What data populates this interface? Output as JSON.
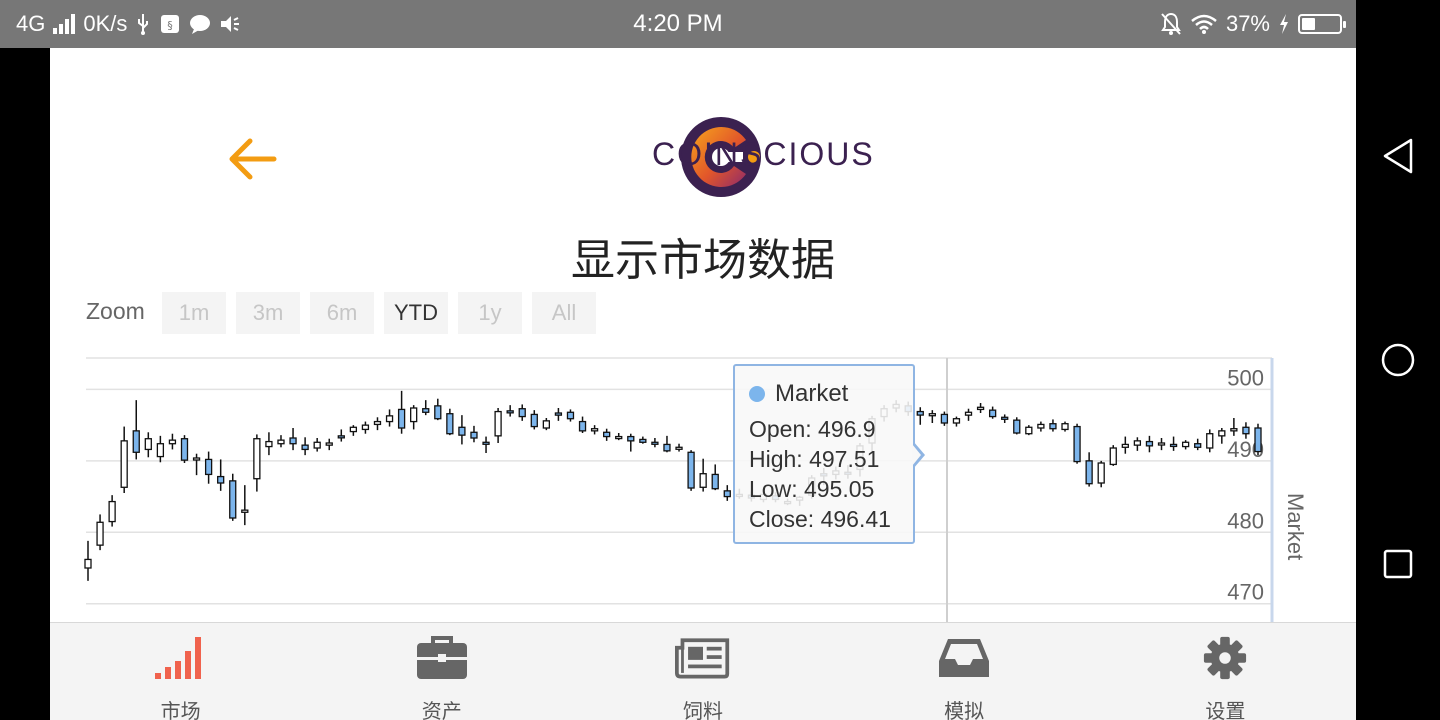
{
  "status_bar": {
    "network": "4G",
    "speed": "0K/s",
    "time": "4:20 PM",
    "battery_percent": "37%",
    "battery_level": 0.37
  },
  "app": {
    "logo_text": "COINSCIOUS",
    "page_title": "显示市场数据",
    "colors": {
      "accent": "#f39c12",
      "brand_purple": "#3b2150",
      "tab_active": "#f0624d",
      "tooltip_border": "#8fb5e3",
      "series_dot": "#7cb5ec"
    }
  },
  "zoom": {
    "label": "Zoom",
    "buttons": [
      "1m",
      "3m",
      "6m",
      "YTD",
      "1y",
      "All"
    ],
    "active": "YTD"
  },
  "chart_data": {
    "type": "candlestick",
    "series_name": "Market",
    "ylim": [
      468,
      508
    ],
    "yticks": [
      "500",
      "490",
      "480",
      "470"
    ],
    "tooltip": {
      "series": "Market",
      "open": "Open: 496.9",
      "high": "High: 497.51",
      "low": "Low: 495.05",
      "close": "Close: 496.41"
    },
    "candles": [
      [
        475,
        478.8,
        473.2,
        476.2
      ],
      [
        478.2,
        482.5,
        477.5,
        481.4
      ],
      [
        481.5,
        485.2,
        480.8,
        484.3
      ],
      [
        486.3,
        494.8,
        485.5,
        492.8
      ],
      [
        494.2,
        498.5,
        490.2,
        491.2
      ],
      [
        491.6,
        494,
        490.5,
        493.1
      ],
      [
        490.6,
        493.5,
        489.8,
        492.4
      ],
      [
        492.4,
        493.8,
        491.6,
        492.9
      ],
      [
        493.1,
        493.6,
        489.7,
        490.1
      ],
      [
        490.2,
        491,
        488,
        490.4
      ],
      [
        490.2,
        491.3,
        486.8,
        488.1
      ],
      [
        487.8,
        490.2,
        485.8,
        486.9
      ],
      [
        487.2,
        488.2,
        481.6,
        482
      ],
      [
        482.8,
        486.6,
        481,
        483.1
      ],
      [
        487.5,
        493.7,
        485.7,
        493.1
      ],
      [
        492,
        494,
        490.8,
        492.7
      ],
      [
        492.4,
        493.6,
        491.9,
        492.9
      ],
      [
        493.2,
        494.6,
        491.5,
        492.4
      ],
      [
        492.2,
        493.3,
        490.8,
        491.6
      ],
      [
        491.8,
        493.2,
        491.3,
        492.6
      ],
      [
        492.2,
        493.1,
        491.5,
        492.5
      ],
      [
        493.5,
        494.4,
        492.7,
        493.4
      ],
      [
        494.1,
        495,
        493.5,
        494.7
      ],
      [
        494.4,
        495.5,
        493.8,
        495
      ],
      [
        495.1,
        496.1,
        494.3,
        495.5
      ],
      [
        495.5,
        497.2,
        494.8,
        496.3
      ],
      [
        497.2,
        499.8,
        493.8,
        494.6
      ],
      [
        495.5,
        497.8,
        494.4,
        497.4
      ],
      [
        497.3,
        498.5,
        496.4,
        496.8
      ],
      [
        497.7,
        498.7,
        495.7,
        495.9
      ],
      [
        496.6,
        497.3,
        493.6,
        493.8
      ],
      [
        494.7,
        496.4,
        492.3,
        493.6
      ],
      [
        494,
        494.9,
        492.6,
        493.2
      ],
      [
        492.6,
        493.4,
        491.1,
        492.4
      ],
      [
        493.5,
        497.4,
        492.5,
        496.9
      ],
      [
        497,
        497.8,
        496.2,
        496.8
      ],
      [
        497.3,
        497.9,
        495.6,
        496.2
      ],
      [
        496.5,
        497.1,
        494.4,
        494.8
      ],
      [
        494.6,
        496,
        494.3,
        495.6
      ],
      [
        496.7,
        497.4,
        495.6,
        496.4
      ],
      [
        496.8,
        497.2,
        495.5,
        495.9
      ],
      [
        495.5,
        496.2,
        493.9,
        494.2
      ],
      [
        494.2,
        495,
        493.7,
        494.5
      ],
      [
        494,
        494.5,
        492.8,
        493.4
      ],
      [
        493.3,
        493.9,
        492.9,
        493.4
      ],
      [
        493.4,
        493.8,
        491.3,
        492.8
      ],
      [
        493,
        493.4,
        492.4,
        492.6
      ],
      [
        492.6,
        493.2,
        491.9,
        492.5
      ],
      [
        492.3,
        493.5,
        491.2,
        491.4
      ],
      [
        491.7,
        492.4,
        491.3,
        491.9
      ],
      [
        491.2,
        491.5,
        485.8,
        486.2
      ],
      [
        486.3,
        490.3,
        485.7,
        488.2
      ],
      [
        488.1,
        489.5,
        485.9,
        486.1
      ],
      [
        485.8,
        486.6,
        484.4,
        485
      ],
      [
        485.3,
        486.1,
        484.7,
        485.3
      ],
      [
        485.2,
        485.7,
        484.3,
        484.8
      ],
      [
        484.6,
        485.8,
        484.2,
        485.3
      ],
      [
        485.1,
        485.6,
        484.2,
        484.6
      ],
      [
        484.1,
        484.7,
        483.8,
        484.3
      ],
      [
        484.5,
        485.1,
        483.7,
        484.9
      ],
      [
        485.2,
        488,
        484.7,
        487.6
      ],
      [
        488.2,
        489,
        486.6,
        487.9
      ],
      [
        488.1,
        489.2,
        487.4,
        488.6
      ],
      [
        488.4,
        489.4,
        487.5,
        488.3
      ],
      [
        488.8,
        492.5,
        487.8,
        492.1
      ],
      [
        492.5,
        496.3,
        491.2,
        495.9
      ],
      [
        496.2,
        497.8,
        495.5,
        497.3
      ],
      [
        497.4,
        498.5,
        496.8,
        497.9
      ],
      [
        497.7,
        498.3,
        496.3,
        496.9
      ],
      [
        496.9,
        497.51,
        495.05,
        496.41
      ],
      [
        496.4,
        497.1,
        495.3,
        496.6
      ],
      [
        496.5,
        496.9,
        494.9,
        495.3
      ],
      [
        495.3,
        496.2,
        494.8,
        495.9
      ],
      [
        496.4,
        497.3,
        495.6,
        496.8
      ],
      [
        497.2,
        498.1,
        496.7,
        497.5
      ],
      [
        497.1,
        497.6,
        495.9,
        496.2
      ],
      [
        496.1,
        496.5,
        495.3,
        495.9
      ],
      [
        495.7,
        496.1,
        493.7,
        493.9
      ],
      [
        493.8,
        495,
        493.6,
        494.7
      ],
      [
        494.6,
        495.5,
        494.1,
        495.1
      ],
      [
        495.2,
        495.8,
        494.1,
        494.5
      ],
      [
        494.4,
        495.5,
        494.1,
        495.2
      ],
      [
        494.8,
        495.2,
        489.6,
        489.9
      ],
      [
        490,
        491.2,
        486.4,
        486.8
      ],
      [
        486.9,
        490,
        486.3,
        489.7
      ],
      [
        489.5,
        492.2,
        489.3,
        491.8
      ],
      [
        491.9,
        493.4,
        491,
        492.3
      ],
      [
        492.2,
        493.3,
        491.4,
        492.8
      ],
      [
        492.7,
        493.5,
        491.2,
        492.1
      ],
      [
        492.3,
        493.2,
        491.5,
        492.5
      ],
      [
        492.3,
        493.4,
        491.4,
        492.2
      ],
      [
        492,
        492.9,
        491.6,
        492.6
      ],
      [
        492.4,
        493.1,
        491.5,
        491.9
      ],
      [
        491.8,
        494.4,
        491.2,
        493.8
      ],
      [
        493.5,
        494.6,
        492.4,
        494.2
      ],
      [
        494.2,
        496,
        493.5,
        494.5
      ],
      [
        494.7,
        495.4,
        493.1,
        493.8
      ],
      [
        494.6,
        495.2,
        490.8,
        491.3
      ]
    ]
  },
  "tabs": [
    {
      "label": "市场",
      "icon": "signal-bars-icon",
      "active": true
    },
    {
      "label": "资产",
      "icon": "briefcase-icon",
      "active": false
    },
    {
      "label": "饲料",
      "icon": "newspaper-icon",
      "active": false
    },
    {
      "label": "模拟",
      "icon": "inbox-tray-icon",
      "active": false
    },
    {
      "label": "设置",
      "icon": "gear-icon",
      "active": false
    }
  ]
}
